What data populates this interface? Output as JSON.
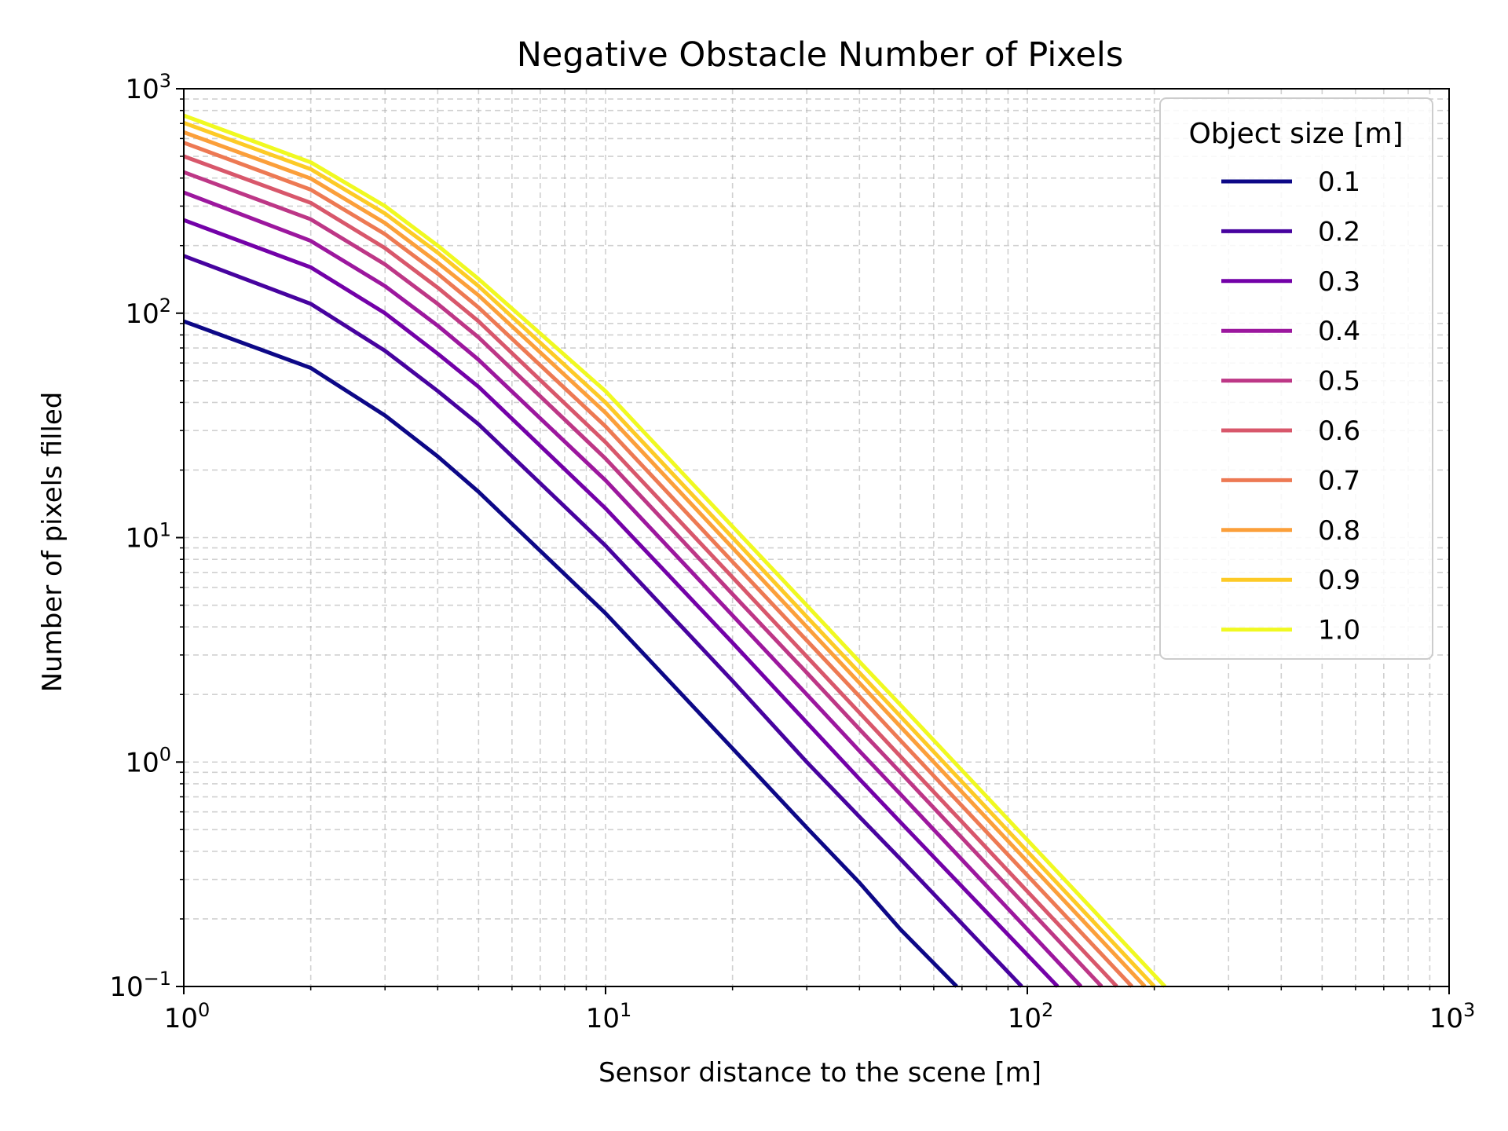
{
  "chart_data": {
    "type": "line",
    "title": "Negative Obstacle Number of Pixels",
    "xlabel": "Sensor distance to the scene [m]",
    "ylabel": "Number of pixels filled",
    "xscale": "log",
    "yscale": "log",
    "xlim": [
      1,
      1000
    ],
    "ylim": [
      0.1,
      1000
    ],
    "x_ticks": [
      {
        "value": 1,
        "base": "10",
        "exp": "0"
      },
      {
        "value": 10,
        "base": "10",
        "exp": "1"
      },
      {
        "value": 100,
        "base": "10",
        "exp": "2"
      },
      {
        "value": 1000,
        "base": "10",
        "exp": "3"
      }
    ],
    "y_ticks": [
      {
        "value": 0.1,
        "base": "10",
        "exp": "−1"
      },
      {
        "value": 1,
        "base": "10",
        "exp": "0"
      },
      {
        "value": 10,
        "base": "10",
        "exp": "1"
      },
      {
        "value": 100,
        "base": "10",
        "exp": "2"
      },
      {
        "value": 1000,
        "base": "10",
        "exp": "3"
      }
    ],
    "grid": true,
    "legend_title": "Object size [m]",
    "legend_position": "top-right",
    "series": [
      {
        "name": "0.1",
        "color": "#0d0887",
        "x": [
          1,
          2,
          3,
          4,
          5,
          10,
          20,
          30,
          40,
          50,
          68
        ],
        "y": [
          92,
          57,
          35,
          23,
          16,
          4.6,
          1.15,
          0.51,
          0.29,
          0.18,
          0.1
        ]
      },
      {
        "name": "0.2",
        "color": "#47039f",
        "x": [
          1,
          2,
          3,
          4,
          5,
          10,
          20,
          30,
          40,
          50,
          97
        ],
        "y": [
          180,
          110,
          68,
          45,
          32,
          9.2,
          2.3,
          1.0,
          0.57,
          0.37,
          0.1
        ]
      },
      {
        "name": "0.3",
        "color": "#7301a8",
        "x": [
          1,
          2,
          3,
          4,
          5,
          10,
          20,
          30,
          40,
          50,
          118
        ],
        "y": [
          260,
          160,
          100,
          66,
          47,
          13.5,
          3.4,
          1.5,
          0.84,
          0.54,
          0.1
        ]
      },
      {
        "name": "0.4",
        "color": "#9c179e",
        "x": [
          1,
          2,
          3,
          4,
          5,
          10,
          20,
          30,
          40,
          50,
          134
        ],
        "y": [
          345,
          210,
          132,
          88,
          62,
          18,
          4.5,
          2.0,
          1.12,
          0.72,
          0.1
        ]
      },
      {
        "name": "0.5",
        "color": "#bd3786",
        "x": [
          1,
          2,
          3,
          4,
          5,
          10,
          20,
          30,
          40,
          50,
          150
        ],
        "y": [
          425,
          262,
          165,
          110,
          78,
          22.5,
          5.6,
          2.5,
          1.4,
          0.9,
          0.1
        ]
      },
      {
        "name": "0.6",
        "color": "#d8576b",
        "x": [
          1,
          2,
          3,
          4,
          5,
          10,
          20,
          30,
          40,
          50,
          163
        ],
        "y": [
          500,
          310,
          195,
          130,
          92,
          26.6,
          6.65,
          2.95,
          1.66,
          1.06,
          0.1
        ]
      },
      {
        "name": "0.7",
        "color": "#ed7953",
        "x": [
          1,
          2,
          3,
          4,
          5,
          10,
          20,
          30,
          40,
          50,
          177
        ],
        "y": [
          575,
          355,
          225,
          150,
          106,
          31.3,
          7.8,
          3.48,
          1.96,
          1.25,
          0.1
        ]
      },
      {
        "name": "0.8",
        "color": "#fb9f3a",
        "x": [
          1,
          2,
          3,
          4,
          5,
          10,
          20,
          30,
          40,
          50,
          190
        ],
        "y": [
          640,
          398,
          252,
          168,
          120,
          36,
          9.0,
          4.0,
          2.25,
          1.44,
          0.1
        ]
      },
      {
        "name": "0.9",
        "color": "#fdca26",
        "x": [
          1,
          2,
          3,
          4,
          5,
          10,
          20,
          30,
          40,
          50,
          200
        ],
        "y": [
          705,
          438,
          278,
          186,
          132,
          40,
          10.0,
          4.44,
          2.5,
          1.6,
          0.1
        ]
      },
      {
        "name": "1.0",
        "color": "#f0f921",
        "x": [
          1,
          2,
          3,
          4,
          5,
          10,
          20,
          30,
          40,
          50,
          212
        ],
        "y": [
          760,
          470,
          300,
          200,
          142,
          44.9,
          11.2,
          4.99,
          2.8,
          1.8,
          0.1
        ]
      }
    ]
  }
}
